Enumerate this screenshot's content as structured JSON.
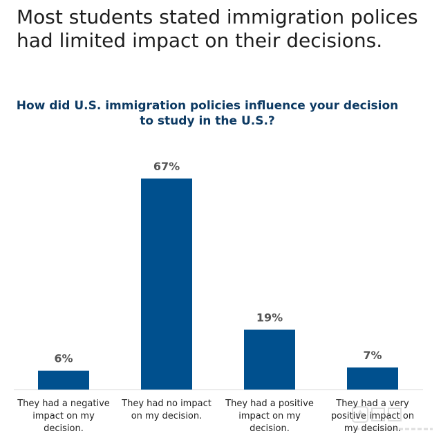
{
  "page": {
    "headline": "Most students stated immigration polices had limited impact on their decisions."
  },
  "chart_data": {
    "type": "bar",
    "title": "How did U.S. immigration policies influence your decision to study in the U.S.?",
    "xlabel": "",
    "ylabel": "",
    "ylim": [
      0,
      70
    ],
    "grid": false,
    "legend": "none",
    "value_suffix": "%",
    "categories": [
      "They had a negative impact on my decision.",
      "They had no impact on my decision.",
      "They had a positive impact on my decision.",
      "They had a very positive impact on my decision."
    ],
    "category_label_lines": [
      [
        "They had a negative",
        "impact on my",
        "decision."
      ],
      [
        "They had no impact",
        "on my decision."
      ],
      [
        "They had a positive",
        "impact on my",
        "decision."
      ],
      [
        "They had a very",
        "positive impact on",
        "my decision."
      ]
    ],
    "values": [
      6,
      67,
      19,
      7
    ],
    "colors": {
      "bar": "#00508e",
      "data_label": "#555555",
      "title": "#0d3a63"
    }
  }
}
